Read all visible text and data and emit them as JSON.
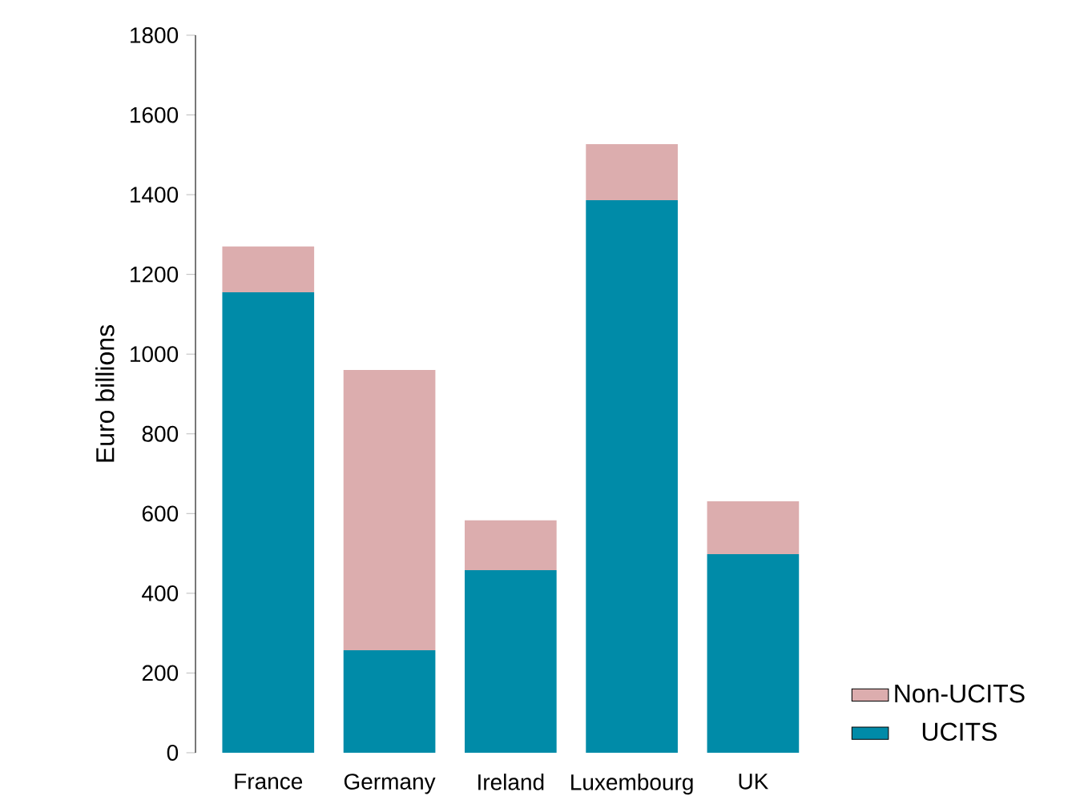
{
  "chart_data": {
    "type": "bar",
    "stacked": true,
    "ylabel": "Euro billions",
    "categories": [
      "France",
      "Germany",
      "Ireland",
      "Luxembourg",
      "UK"
    ],
    "series": [
      {
        "name": "UCITS",
        "color": "#008ba8",
        "values": [
          1155,
          257,
          458,
          1386,
          498
        ]
      },
      {
        "name": "Non-UCITS",
        "color": "#dcadae",
        "values": [
          115,
          703,
          125,
          141,
          133
        ]
      }
    ],
    "ylim": [
      0,
      1800
    ],
    "yticks": [
      0,
      200,
      400,
      600,
      800,
      1000,
      1200,
      1400,
      1600,
      1800
    ],
    "grid": false,
    "legend": "bottom right"
  }
}
